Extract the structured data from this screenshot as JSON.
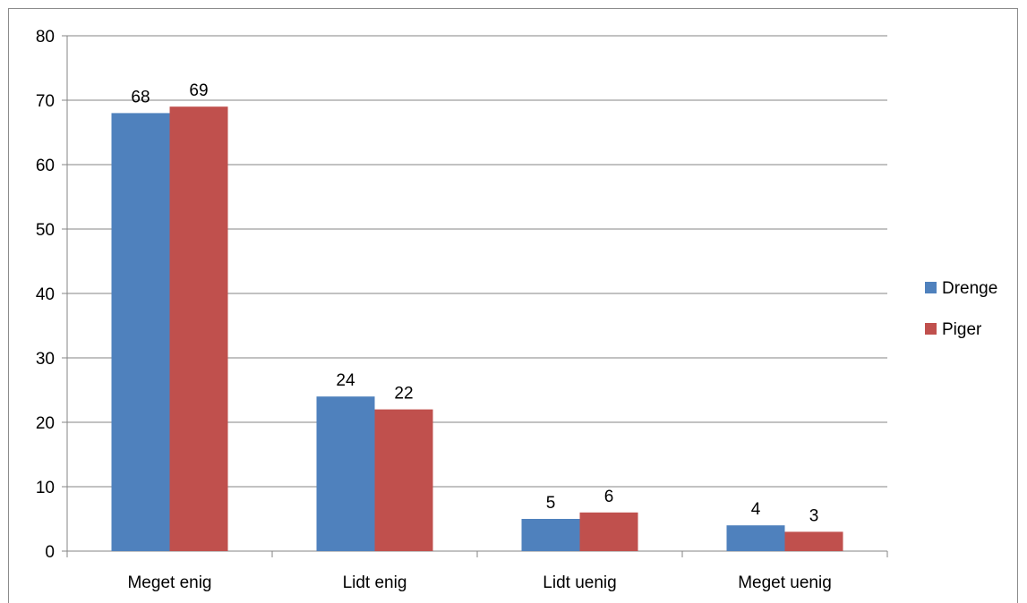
{
  "chart_data": {
    "type": "bar",
    "title": "",
    "xlabel": "",
    "ylabel": "",
    "categories": [
      "Meget enig",
      "Lidt enig",
      "Lidt uenig",
      "Meget uenig"
    ],
    "series": [
      {
        "name": "Drenge",
        "values": [
          68,
          24,
          5,
          4
        ],
        "color": "#4f81bd"
      },
      {
        "name": "Piger",
        "values": [
          69,
          22,
          6,
          3
        ],
        "color": "#c0504d"
      }
    ],
    "ylim": [
      0,
      80
    ],
    "yticks": [
      0,
      10,
      20,
      30,
      40,
      50,
      60,
      70,
      80
    ],
    "grid": true,
    "legend_position": "right",
    "data_labels": true
  }
}
